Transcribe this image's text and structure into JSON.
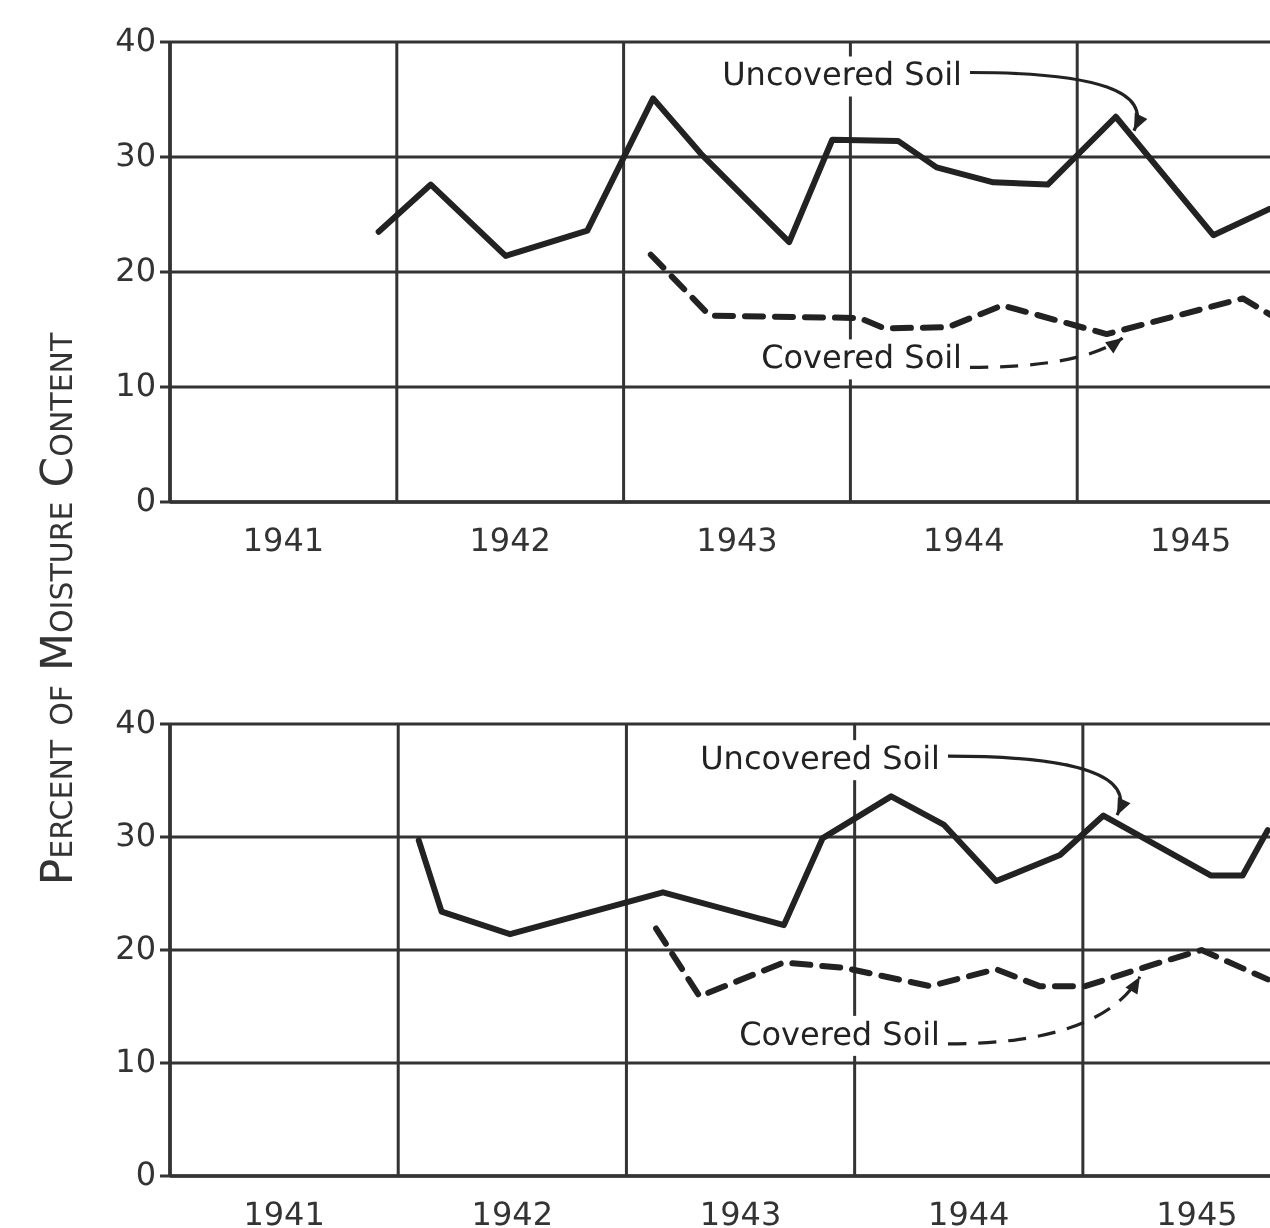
{
  "chart_data": [
    {
      "type": "line",
      "ylabel": "Percent of Moisture Content",
      "xlim": [
        1941,
        1945.85
      ],
      "ylim": [
        0,
        40
      ],
      "yticks": [
        0,
        10,
        20,
        30,
        40
      ],
      "xticks": [
        {
          "value": 1941,
          "label": null
        },
        {
          "value": 1941.5,
          "label": "1941"
        },
        {
          "value": 1942,
          "label": null
        },
        {
          "value": 1942.5,
          "label": "1942"
        },
        {
          "value": 1943,
          "label": null
        },
        {
          "value": 1943.5,
          "label": "1943"
        },
        {
          "value": 1944,
          "label": null
        },
        {
          "value": 1944.5,
          "label": "1944"
        },
        {
          "value": 1945,
          "label": null
        },
        {
          "value": 1945.5,
          "label": "1945"
        }
      ],
      "grid": true,
      "series": [
        {
          "name": "Uncovered Soil",
          "color": "#222222",
          "line_style": "solid",
          "x": [
            1941.92,
            1942.15,
            1942.48,
            1942.84,
            1943.13,
            1943.34,
            1943.73,
            1943.92,
            1944.21,
            1944.38,
            1944.63,
            1944.87,
            1945.17,
            1945.6,
            1945.85
          ],
          "values": [
            23.5,
            27.6,
            21.4,
            23.6,
            35.1,
            30.3,
            22.6,
            31.5,
            31.4,
            29.1,
            27.8,
            27.6,
            33.5,
            23.2,
            25.5
          ]
        },
        {
          "name": "Covered Soil",
          "color": "#222222",
          "line_style": "dashed",
          "x": [
            1943.12,
            1943.38,
            1944.04,
            1944.15,
            1944.43,
            1944.67,
            1945.13,
            1945.73,
            1945.85
          ],
          "values": [
            21.5,
            16.2,
            16.0,
            15.1,
            15.2,
            17.1,
            14.6,
            17.7,
            16.3
          ]
        }
      ]
    },
    {
      "type": "line",
      "xlim": [
        1941,
        1945.82
      ],
      "ylim": [
        0,
        40
      ],
      "yticks": [
        0,
        10,
        20,
        30,
        40
      ],
      "xticks": [
        {
          "value": 1941,
          "label": null
        },
        {
          "value": 1941.5,
          "label": "1941"
        },
        {
          "value": 1942,
          "label": null
        },
        {
          "value": 1942.5,
          "label": "1942"
        },
        {
          "value": 1943,
          "label": null
        },
        {
          "value": 1943.5,
          "label": "1943"
        },
        {
          "value": 1944,
          "label": null
        },
        {
          "value": 1944.5,
          "label": "1944"
        },
        {
          "value": 1945,
          "label": null
        },
        {
          "value": 1945.5,
          "label": "1945"
        }
      ],
      "grid": true,
      "series": [
        {
          "name": "Uncovered Soil",
          "color": "#222222",
          "line_style": "solid",
          "x": [
            1942.09,
            1942.19,
            1942.49,
            1943.16,
            1943.69,
            1943.86,
            1944.16,
            1944.39,
            1944.62,
            1944.9,
            1945.09,
            1945.56,
            1945.7,
            1945.81
          ],
          "values": [
            29.7,
            23.4,
            21.4,
            25.1,
            22.2,
            29.9,
            33.6,
            31.1,
            26.1,
            28.4,
            31.9,
            26.6,
            26.6,
            30.6
          ]
        },
        {
          "name": "Covered Soil",
          "color": "#222222",
          "line_style": "dashed",
          "x": [
            1943.13,
            1943.32,
            1943.69,
            1943.96,
            1944.33,
            1944.62,
            1944.81,
            1945.01,
            1945.29,
            1945.52,
            1945.81
          ],
          "values": [
            21.9,
            15.9,
            18.9,
            18.4,
            16.8,
            18.3,
            16.8,
            16.8,
            18.6,
            20.0,
            17.4
          ]
        }
      ]
    }
  ]
}
